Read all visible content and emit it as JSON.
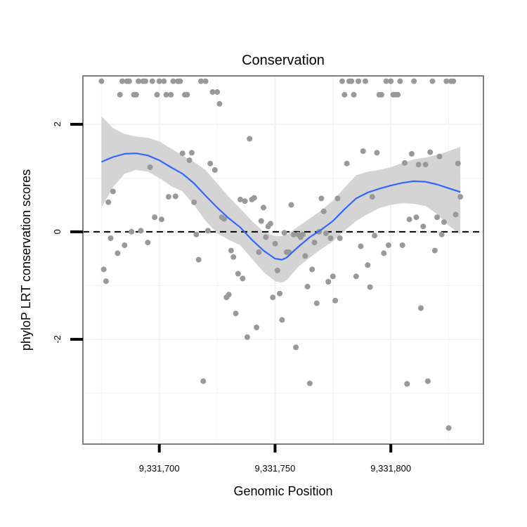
{
  "chart_data": {
    "type": "scatter",
    "title": "Conservation",
    "xlabel": "Genomic Position",
    "ylabel": "phyloP LRT conservation scores",
    "xlim": [
      9331667,
      9331840
    ],
    "ylim": [
      -3.95,
      2.9
    ],
    "x_ticks": [
      {
        "value": 9331700,
        "label": "9,331,700"
      },
      {
        "value": 9331750,
        "label": "9,331,750"
      },
      {
        "value": 9331800,
        "label": "9,331,800"
      }
    ],
    "y_ticks": [
      {
        "value": 2,
        "label": "2"
      },
      {
        "value": 0,
        "label": "0"
      },
      {
        "value": -2,
        "label": "-2"
      }
    ],
    "x_minor_gridlines": [
      9331675,
      9331725,
      9331775,
      9331825
    ],
    "y_minor_gridlines": [
      1,
      -1,
      -3
    ],
    "reference_line": {
      "y": 0,
      "style": "dashed"
    },
    "colors": {
      "points": "#999999",
      "smooth_line": "#3366ff",
      "confidence_band": "#d4d4d4",
      "panel_border": "#7f7f7f",
      "gridlines": "#f2f2f2",
      "reference_line": "#000000"
    },
    "series": [
      {
        "name": "phyloP scores",
        "points": [
          {
            "x": 9331675,
            "y": 2.8
          },
          {
            "x": 9331676,
            "y": -0.7
          },
          {
            "x": 9331677,
            "y": -0.92
          },
          {
            "x": 9331678,
            "y": 0.55
          },
          {
            "x": 9331679,
            "y": -0.12
          },
          {
            "x": 9331680,
            "y": 0.75
          },
          {
            "x": 9331682,
            "y": -0.4
          },
          {
            "x": 9331683,
            "y": 2.55
          },
          {
            "x": 9331684,
            "y": 2.8
          },
          {
            "x": 9331685,
            "y": -0.25
          },
          {
            "x": 9331686,
            "y": 2.8
          },
          {
            "x": 9331687,
            "y": 2.8
          },
          {
            "x": 9331688,
            "y": 0.0
          },
          {
            "x": 9331689,
            "y": 2.55
          },
          {
            "x": 9331690,
            "y": 2.55
          },
          {
            "x": 9331691,
            "y": 2.8
          },
          {
            "x": 9331692,
            "y": 0.02
          },
          {
            "x": 9331693,
            "y": 2.8
          },
          {
            "x": 9331694,
            "y": 2.8
          },
          {
            "x": 9331695,
            "y": -0.2
          },
          {
            "x": 9331696,
            "y": 1.2
          },
          {
            "x": 9331697,
            "y": 2.8
          },
          {
            "x": 9331698,
            "y": 0.27
          },
          {
            "x": 9331699,
            "y": 2.55
          },
          {
            "x": 9331700,
            "y": 2.8
          },
          {
            "x": 9331701,
            "y": 0.23
          },
          {
            "x": 9331702,
            "y": 2.8
          },
          {
            "x": 9331703,
            "y": 2.55
          },
          {
            "x": 9331704,
            "y": 0.65
          },
          {
            "x": 9331705,
            "y": 2.55
          },
          {
            "x": 9331706,
            "y": 2.8
          },
          {
            "x": 9331707,
            "y": 0.66
          },
          {
            "x": 9331708,
            "y": 2.8
          },
          {
            "x": 9331709,
            "y": 2.8
          },
          {
            "x": 9331710,
            "y": 1.46
          },
          {
            "x": 9331711,
            "y": 2.55
          },
          {
            "x": 9331712,
            "y": 2.55
          },
          {
            "x": 9331713,
            "y": 1.33
          },
          {
            "x": 9331714,
            "y": 1.47
          },
          {
            "x": 9331715,
            "y": 0.55
          },
          {
            "x": 9331716,
            "y": -0.05
          },
          {
            "x": 9331717,
            "y": -0.52
          },
          {
            "x": 9331718,
            "y": 2.8
          },
          {
            "x": 9331719,
            "y": -2.78
          },
          {
            "x": 9331720,
            "y": 2.8
          },
          {
            "x": 9331721,
            "y": 0.02
          },
          {
            "x": 9331722,
            "y": 1.27
          },
          {
            "x": 9331723,
            "y": 2.6
          },
          {
            "x": 9331724,
            "y": 1.15
          },
          {
            "x": 9331725,
            "y": 2.6
          },
          {
            "x": 9331726,
            "y": 2.38
          },
          {
            "x": 9331727,
            "y": 0.27
          },
          {
            "x": 9331728,
            "y": 0.24
          },
          {
            "x": 9331729,
            "y": -1.22
          },
          {
            "x": 9331730,
            "y": -1.17
          },
          {
            "x": 9331731,
            "y": -0.35
          },
          {
            "x": 9331732,
            "y": -0.47
          },
          {
            "x": 9331733,
            "y": -1.52
          },
          {
            "x": 9331734,
            "y": -0.78
          },
          {
            "x": 9331735,
            "y": 0.6
          },
          {
            "x": 9331736,
            "y": -0.87
          },
          {
            "x": 9331737,
            "y": 0.57
          },
          {
            "x": 9331738,
            "y": -1.96
          },
          {
            "x": 9331739,
            "y": 1.73
          },
          {
            "x": 9331740,
            "y": 0.6
          },
          {
            "x": 9331741,
            "y": 0.63
          },
          {
            "x": 9331742,
            "y": -1.78
          },
          {
            "x": 9331743,
            "y": -0.38
          },
          {
            "x": 9331744,
            "y": 0.2
          },
          {
            "x": 9331745,
            "y": 0.45
          },
          {
            "x": 9331746,
            "y": -0.1
          },
          {
            "x": 9331747,
            "y": 0.1
          },
          {
            "x": 9331748,
            "y": 0.15
          },
          {
            "x": 9331749,
            "y": -1.22
          },
          {
            "x": 9331750,
            "y": -0.22
          },
          {
            "x": 9331751,
            "y": -0.72
          },
          {
            "x": 9331752,
            "y": -1.15
          },
          {
            "x": 9331753,
            "y": -1.64
          },
          {
            "x": 9331754,
            "y": -0.02
          },
          {
            "x": 9331755,
            "y": -0.38
          },
          {
            "x": 9331756,
            "y": -0.38
          },
          {
            "x": 9331757,
            "y": 0.5
          },
          {
            "x": 9331758,
            "y": -0.05
          },
          {
            "x": 9331759,
            "y": -2.15
          },
          {
            "x": 9331760,
            "y": -0.05
          },
          {
            "x": 9331761,
            "y": -0.1
          },
          {
            "x": 9331762,
            "y": -0.05
          },
          {
            "x": 9331763,
            "y": -0.45
          },
          {
            "x": 9331764,
            "y": -1.02
          },
          {
            "x": 9331765,
            "y": -2.82
          },
          {
            "x": 9331766,
            "y": -0.7
          },
          {
            "x": 9331767,
            "y": -0.2
          },
          {
            "x": 9331768,
            "y": -1.33
          },
          {
            "x": 9331769,
            "y": 0.0
          },
          {
            "x": 9331770,
            "y": 0.62
          },
          {
            "x": 9331771,
            "y": 0.38
          },
          {
            "x": 9331772,
            "y": -0.03
          },
          {
            "x": 9331773,
            "y": -0.93
          },
          {
            "x": 9331774,
            "y": -0.12
          },
          {
            "x": 9331775,
            "y": -0.83
          },
          {
            "x": 9331776,
            "y": -1.28
          },
          {
            "x": 9331777,
            "y": 0.62
          },
          {
            "x": 9331778,
            "y": -0.12
          },
          {
            "x": 9331779,
            "y": 2.8
          },
          {
            "x": 9331780,
            "y": 2.55
          },
          {
            "x": 9331781,
            "y": 1.27
          },
          {
            "x": 9331782,
            "y": 2.8
          },
          {
            "x": 9331783,
            "y": 2.8
          },
          {
            "x": 9331784,
            "y": 2.55
          },
          {
            "x": 9331785,
            "y": -0.83
          },
          {
            "x": 9331786,
            "y": 2.8
          },
          {
            "x": 9331787,
            "y": -0.27
          },
          {
            "x": 9331788,
            "y": 1.5
          },
          {
            "x": 9331789,
            "y": 2.8
          },
          {
            "x": 9331790,
            "y": -0.62
          },
          {
            "x": 9331791,
            "y": -1.03
          },
          {
            "x": 9331792,
            "y": 0.65
          },
          {
            "x": 9331793,
            "y": -0.07
          },
          {
            "x": 9331794,
            "y": 1.47
          },
          {
            "x": 9331795,
            "y": 2.55
          },
          {
            "x": 9331796,
            "y": 2.55
          },
          {
            "x": 9331797,
            "y": -0.4
          },
          {
            "x": 9331798,
            "y": 2.8
          },
          {
            "x": 9331799,
            "y": -0.25
          },
          {
            "x": 9331800,
            "y": 2.8
          },
          {
            "x": 9331801,
            "y": 2.55
          },
          {
            "x": 9331802,
            "y": 2.55
          },
          {
            "x": 9331803,
            "y": 2.55
          },
          {
            "x": 9331804,
            "y": 2.8
          },
          {
            "x": 9331805,
            "y": -0.25
          },
          {
            "x": 9331806,
            "y": 1.28
          },
          {
            "x": 9331807,
            "y": -2.83
          },
          {
            "x": 9331808,
            "y": 0.23
          },
          {
            "x": 9331809,
            "y": 1.45
          },
          {
            "x": 9331810,
            "y": 2.8
          },
          {
            "x": 9331811,
            "y": 0.27
          },
          {
            "x": 9331812,
            "y": 1.25
          },
          {
            "x": 9331813,
            "y": -1.42
          },
          {
            "x": 9331814,
            "y": 0.1
          },
          {
            "x": 9331815,
            "y": 1.25
          },
          {
            "x": 9331816,
            "y": -2.78
          },
          {
            "x": 9331817,
            "y": 1.48
          },
          {
            "x": 9331818,
            "y": 2.8
          },
          {
            "x": 9331819,
            "y": -0.35
          },
          {
            "x": 9331820,
            "y": 0.27
          },
          {
            "x": 9331821,
            "y": 1.4
          },
          {
            "x": 9331822,
            "y": -0.05
          },
          {
            "x": 9331823,
            "y": 0.18
          },
          {
            "x": 9331824,
            "y": 2.8
          },
          {
            "x": 9331825,
            "y": -3.65
          },
          {
            "x": 9331826,
            "y": 2.8
          },
          {
            "x": 9331827,
            "y": 2.8
          },
          {
            "x": 9331828,
            "y": 0.32
          },
          {
            "x": 9331829,
            "y": 1.27
          },
          {
            "x": 9331830,
            "y": 0.65
          }
        ]
      },
      {
        "name": "loess fit",
        "type": "line",
        "points": [
          {
            "x": 9331675,
            "y": 1.3
          },
          {
            "x": 9331680,
            "y": 1.39
          },
          {
            "x": 9331685,
            "y": 1.45
          },
          {
            "x": 9331690,
            "y": 1.46
          },
          {
            "x": 9331695,
            "y": 1.42
          },
          {
            "x": 9331700,
            "y": 1.33
          },
          {
            "x": 9331705,
            "y": 1.2
          },
          {
            "x": 9331710,
            "y": 1.08
          },
          {
            "x": 9331715,
            "y": 0.9
          },
          {
            "x": 9331720,
            "y": 0.67
          },
          {
            "x": 9331725,
            "y": 0.45
          },
          {
            "x": 9331730,
            "y": 0.25
          },
          {
            "x": 9331735,
            "y": 0.08
          },
          {
            "x": 9331740,
            "y": -0.15
          },
          {
            "x": 9331745,
            "y": -0.35
          },
          {
            "x": 9331750,
            "y": -0.5
          },
          {
            "x": 9331753,
            "y": -0.52
          },
          {
            "x": 9331755,
            "y": -0.48
          },
          {
            "x": 9331760,
            "y": -0.28
          },
          {
            "x": 9331765,
            "y": -0.1
          },
          {
            "x": 9331770,
            "y": 0.04
          },
          {
            "x": 9331775,
            "y": 0.2
          },
          {
            "x": 9331780,
            "y": 0.42
          },
          {
            "x": 9331785,
            "y": 0.62
          },
          {
            "x": 9331790,
            "y": 0.73
          },
          {
            "x": 9331795,
            "y": 0.8
          },
          {
            "x": 9331800,
            "y": 0.86
          },
          {
            "x": 9331805,
            "y": 0.91
          },
          {
            "x": 9331810,
            "y": 0.94
          },
          {
            "x": 9331815,
            "y": 0.93
          },
          {
            "x": 9331820,
            "y": 0.88
          },
          {
            "x": 9331825,
            "y": 0.81
          },
          {
            "x": 9331830,
            "y": 0.74
          }
        ],
        "upper": [
          2.15,
          1.93,
          1.82,
          1.77,
          1.75,
          1.68,
          1.55,
          1.42,
          1.3,
          1.15,
          0.9,
          0.65,
          0.43,
          0.2,
          0.0,
          -0.08,
          -0.08,
          -0.06,
          0.1,
          0.25,
          0.4,
          0.58,
          0.82,
          1.05,
          1.12,
          1.15,
          1.2,
          1.28,
          1.35,
          1.38,
          1.43,
          1.5,
          1.58
        ],
        "lower": [
          0.45,
          0.83,
          1.08,
          1.15,
          1.12,
          1.0,
          0.85,
          0.75,
          0.5,
          0.2,
          -0.03,
          -0.15,
          -0.25,
          -0.5,
          -0.75,
          -0.92,
          -0.95,
          -0.9,
          -0.65,
          -0.48,
          -0.32,
          -0.18,
          0.02,
          0.2,
          0.33,
          0.44,
          0.5,
          0.53,
          0.52,
          0.48,
          0.33,
          0.12,
          -0.05
        ]
      }
    ]
  }
}
